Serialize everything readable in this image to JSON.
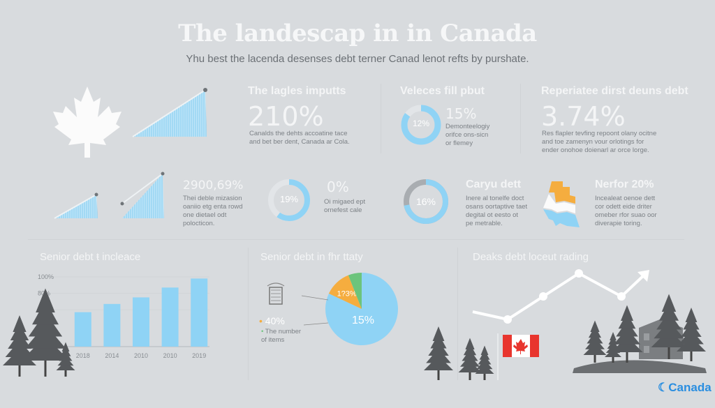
{
  "header": {
    "title": "The landescap in in Canada",
    "subtitle": "Yhu best the lacenda desenses debt terner Canad lenot refts by purshate."
  },
  "stats_row1": [
    {
      "heading": "The lagles imputts",
      "value": "210%",
      "desc": [
        "Canalds the dehts accoatine tace",
        "and bet ber dent, Canada ar Cola."
      ]
    },
    {
      "heading": "Veleces fill pbut",
      "donut_label": "12%",
      "donut_fill": 0.85,
      "value": "15%",
      "desc": [
        "Demonteelogiy",
        "orifce ons-sicn",
        "or flemey"
      ]
    },
    {
      "heading": "Reperiatee dirst deuns debt",
      "value": "3.74%",
      "desc": [
        "Res flapler tevfing repoont olany ocitne",
        "and toe zamenyn vour orlotings for",
        "ender onohoe doienarl ar orce lorge."
      ]
    }
  ],
  "stats_row2": [
    {
      "value": "2900,69%",
      "desc": [
        "Thei deble mizasion",
        "oaniio etg enta rowd",
        "one dietael odt",
        "polocticon."
      ]
    },
    {
      "donut_label": "19%",
      "donut_fill": 0.6,
      "value": "0%",
      "desc": [
        "Oi migaed ept",
        "ornefest cale"
      ]
    },
    {
      "donut_label": "16%",
      "donut_fill": 0.72,
      "heading": "Caryu dett",
      "desc": [
        "Inere al tonelfe doct",
        "osans oortaptive taet",
        "degital ot eesto ot",
        "pe metrable."
      ]
    },
    {
      "heading": "Nerfor 20%",
      "desc": [
        "Incealeat oenoe dett",
        "cor odett eide driter",
        "omeber rfor suao oor",
        "diverapie toring."
      ]
    }
  ],
  "colors": {
    "accent_blue": "#8fd3f5",
    "orange": "#f5ad3f",
    "green": "#6cc47c",
    "gray_ring": "#a9adb1",
    "flag_red": "#e8352e",
    "logo_blue": "#2a8ee0"
  },
  "chart_data": [
    {
      "type": "bar",
      "title": "Senior debt ŧ incleace",
      "categories": [
        "2018",
        "2014",
        "2010",
        "2010",
        "2019"
      ],
      "values": [
        57,
        67,
        75,
        87,
        98
      ],
      "yticks": [
        "100%",
        "80%",
        "?%"
      ],
      "ylim": [
        15,
        100
      ],
      "grid": true
    },
    {
      "type": "pie",
      "title": "Senior debt in fhr ttaty",
      "slices": [
        {
          "label": "15%",
          "share": 82,
          "color": "#8fd3f5"
        },
        {
          "label": "1?3%",
          "share": 12,
          "color": "#f5ad3f"
        },
        {
          "label": "",
          "share": 6,
          "color": "#6cc47c"
        }
      ],
      "legend": {
        "value": "40%",
        "text": [
          "The number",
          "of items"
        ]
      }
    },
    {
      "type": "line",
      "title": "Deaks debt loceut rading",
      "values": [
        3,
        2,
        5,
        8,
        5,
        8
      ],
      "arrow_end": true
    }
  ],
  "footer": {
    "logo_text": "Canada"
  }
}
